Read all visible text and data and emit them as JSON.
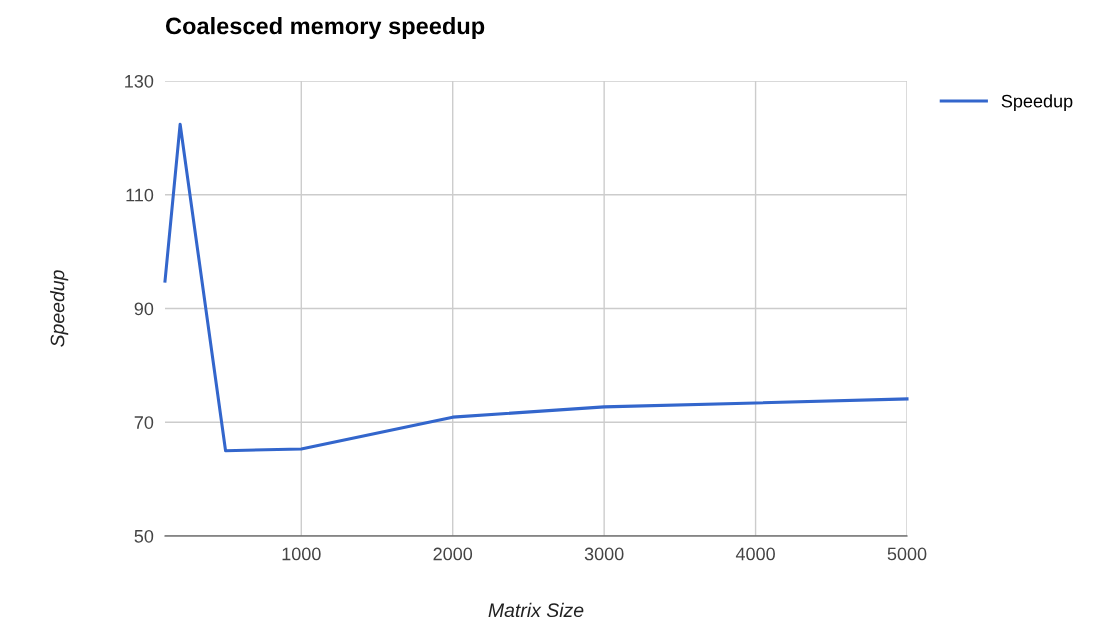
{
  "chart_data": {
    "type": "line",
    "title": "Coalesced memory speedup",
    "xlabel": "Matrix Size",
    "ylabel": "Speedup",
    "x": [
      100,
      200,
      500,
      1000,
      2000,
      3000,
      4000,
      5000
    ],
    "series": [
      {
        "name": "Speedup",
        "color": "#3366cc",
        "values": [
          94.8,
          122.4,
          65.0,
          65.3,
          70.9,
          72.7,
          73.4,
          74.1
        ]
      }
    ],
    "xlim": [
      100,
      5000
    ],
    "xticks": [
      1000,
      2000,
      3000,
      4000,
      5000
    ],
    "ylim": [
      50,
      130
    ],
    "yticks": [
      50,
      70,
      90,
      110,
      130
    ],
    "grid": true,
    "legend": "top right",
    "marker": "none",
    "line_style": "solid"
  }
}
